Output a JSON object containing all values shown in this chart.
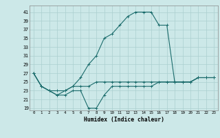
{
  "title": "",
  "xlabel": "Humidex (Indice chaleur)",
  "ylabel": "",
  "background_color": "#cce8e8",
  "line_color": "#1a6b6b",
  "grid_color": "#aacfcf",
  "xlim": [
    -0.5,
    23.5
  ],
  "ylim": [
    18.5,
    42.5
  ],
  "yticks": [
    19,
    21,
    23,
    25,
    27,
    29,
    31,
    33,
    35,
    37,
    39,
    41
  ],
  "xticks": [
    0,
    1,
    2,
    3,
    4,
    5,
    6,
    7,
    8,
    9,
    10,
    11,
    12,
    13,
    14,
    15,
    16,
    17,
    18,
    19,
    20,
    21,
    22,
    23
  ],
  "series1": [
    27,
    24,
    23,
    22,
    22,
    23,
    23,
    19,
    19,
    22,
    24,
    24,
    24,
    24,
    24,
    24,
    25,
    25,
    25,
    25,
    25,
    26,
    26,
    26
  ],
  "series2": [
    27,
    24,
    23,
    22,
    23,
    24,
    26,
    29,
    31,
    35,
    36,
    38,
    40,
    41,
    41,
    41,
    38,
    38,
    25,
    25,
    25,
    26,
    26,
    26
  ],
  "series3": [
    27,
    24,
    23,
    23,
    23,
    24,
    24,
    24,
    25,
    25,
    25,
    25,
    25,
    25,
    25,
    25,
    25,
    25,
    25,
    25,
    25,
    26,
    26,
    26
  ]
}
